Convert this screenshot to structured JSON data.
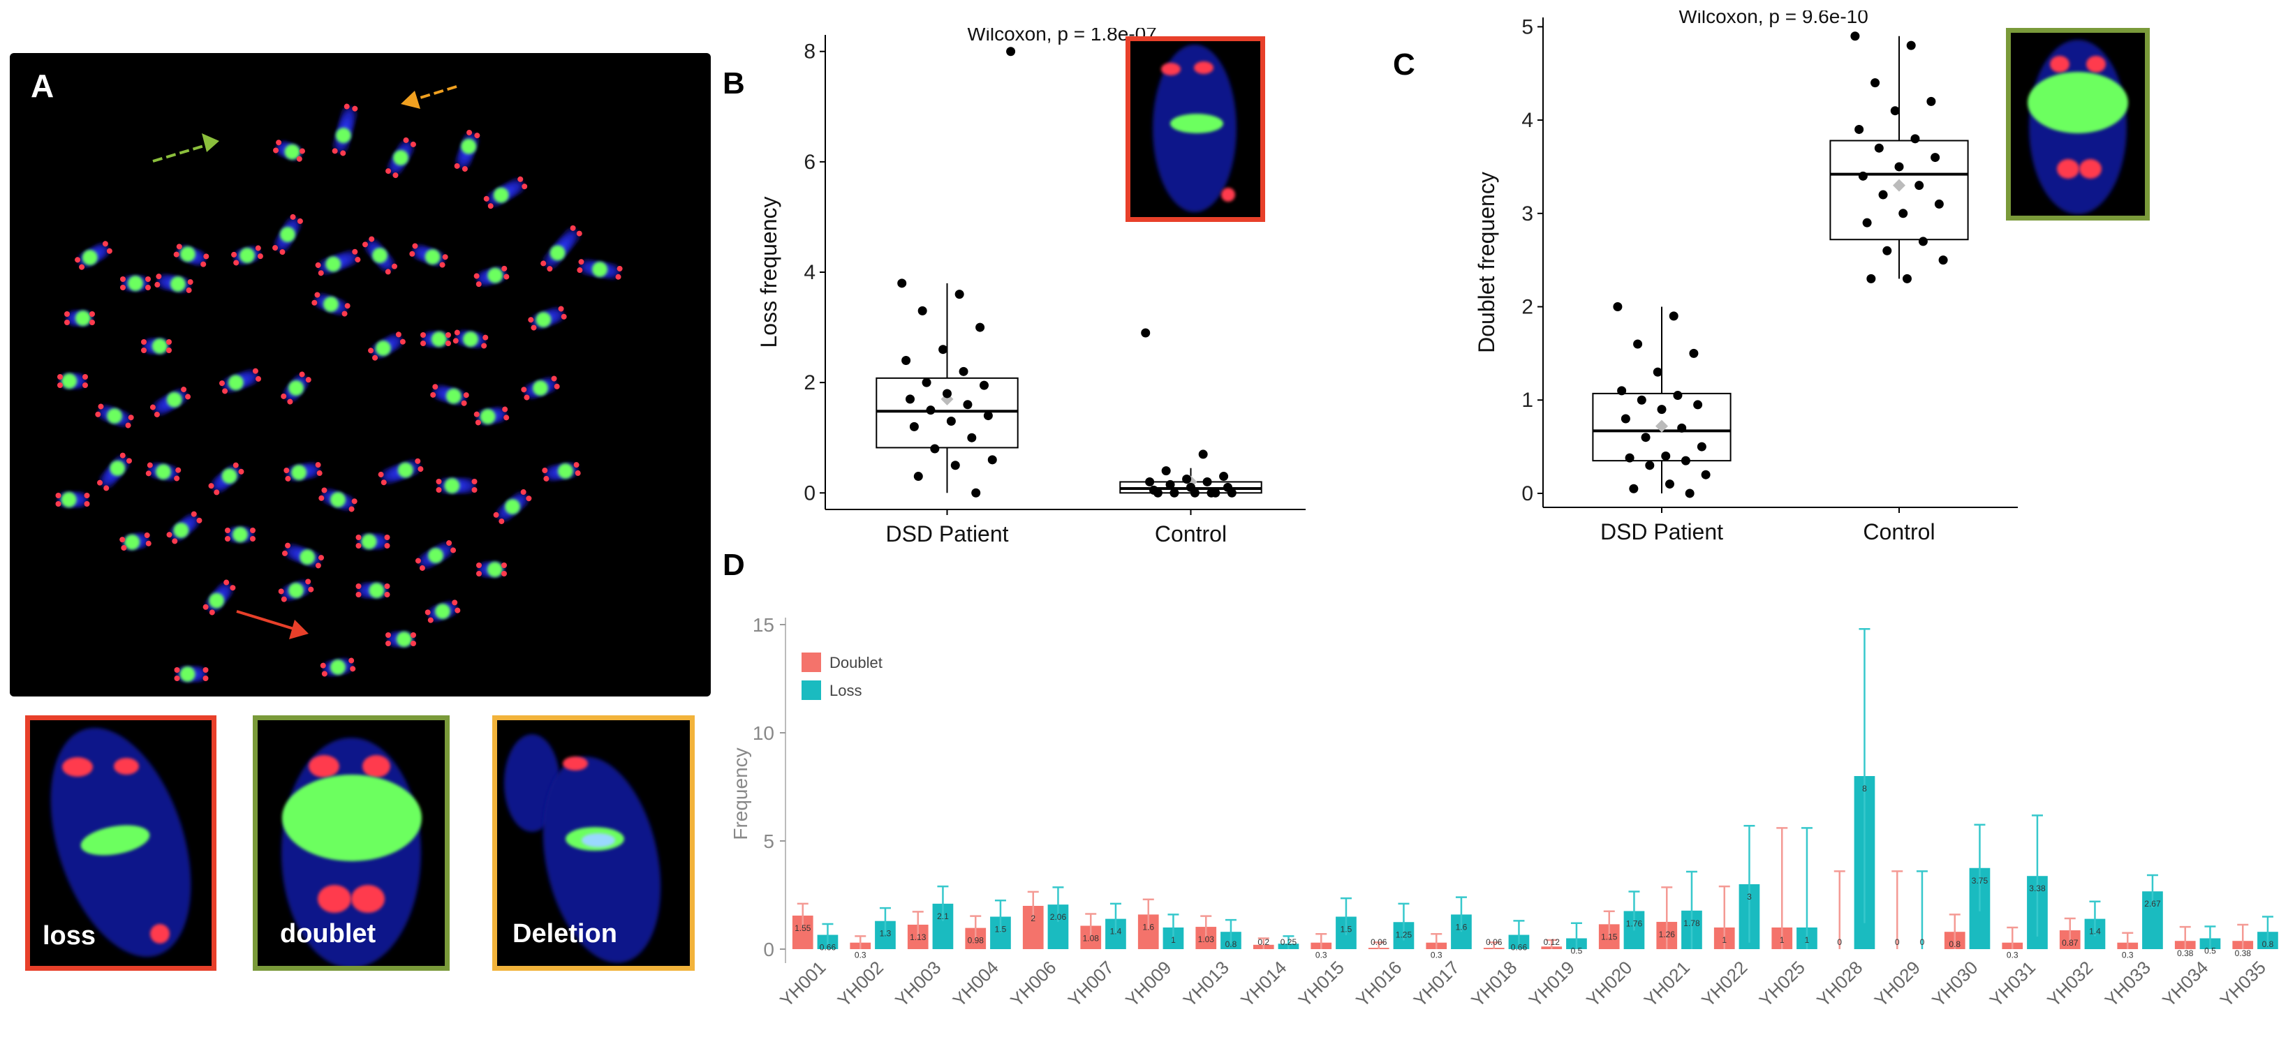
{
  "panel_a": {
    "letter": "A",
    "thumbs": [
      {
        "label": "loss",
        "border": "#e8402a"
      },
      {
        "label": "doublet",
        "border": "#7a9a3a"
      },
      {
        "label": "Deletion",
        "border": "#f2b33b"
      }
    ],
    "arrow_colors": {
      "green": "#8bbf3c",
      "orange": "#f0a020",
      "red": "#e8402a"
    }
  },
  "colors": {
    "doublet": "#f4736b",
    "loss": "#1abbc0",
    "probe_red": "#ff3b4e",
    "probe_green": "#6cff5e",
    "chromosome": "#1a1fb0"
  },
  "chart_data": [
    {
      "id": "B",
      "type": "box",
      "letter": "B",
      "annotation": "Wilcoxon, p = 1.8e-07",
      "ylabel": "Loss frequency",
      "categories": [
        "DSD Patient",
        "Control"
      ],
      "ylim": [
        -0.3,
        8.3
      ],
      "yticks": [
        0,
        2,
        4,
        6,
        8
      ],
      "boxes": [
        {
          "q1": 0.82,
          "median": 1.48,
          "q3": 2.08,
          "whisker_low": 0.0,
          "whisker_high": 3.8,
          "mean": 1.7
        },
        {
          "q1": 0.0,
          "median": 0.08,
          "q3": 0.2,
          "whisker_low": 0.0,
          "whisker_high": 0.45,
          "mean": 0.2
        }
      ],
      "points": [
        [
          3.8,
          3.6,
          3.3,
          3.0,
          2.6,
          2.4,
          2.2,
          2.0,
          1.95,
          1.8,
          1.7,
          1.6,
          1.5,
          1.4,
          1.3,
          1.2,
          1.0,
          0.8,
          0.6,
          0.5,
          0.3,
          0.0
        ],
        [
          2.9,
          0.7,
          0.4,
          0.3,
          0.25,
          0.2,
          0.2,
          0.15,
          0.1,
          0.1,
          0.05,
          0.0,
          0.0,
          0.0,
          0.0,
          0.0,
          0.0
        ],
        [
          8.0
        ]
      ],
      "outliers": [
        {
          "group": 1,
          "value": 8.0
        }
      ],
      "inset_border": "#e8402a"
    },
    {
      "id": "C",
      "type": "box",
      "letter": "C",
      "annotation": "Wilcoxon, p = 9.6e-10",
      "ylabel": "Doublet frequency",
      "categories": [
        "DSD Patient",
        "Control"
      ],
      "ylim": [
        -0.15,
        5.1
      ],
      "yticks": [
        0,
        1,
        2,
        3,
        4,
        5
      ],
      "boxes": [
        {
          "q1": 0.35,
          "median": 0.67,
          "q3": 1.07,
          "whisker_low": 0.0,
          "whisker_high": 2.0,
          "mean": 0.72
        },
        {
          "q1": 2.72,
          "median": 3.42,
          "q3": 3.78,
          "whisker_low": 2.3,
          "whisker_high": 4.9,
          "mean": 3.3
        }
      ],
      "points": [
        [
          2.0,
          1.9,
          1.6,
          1.5,
          1.3,
          1.1,
          1.05,
          1.0,
          0.95,
          0.9,
          0.8,
          0.7,
          0.6,
          0.5,
          0.4,
          0.38,
          0.35,
          0.3,
          0.2,
          0.1,
          0.05,
          0.0
        ],
        [
          4.9,
          4.8,
          4.4,
          4.2,
          4.1,
          3.9,
          3.8,
          3.7,
          3.6,
          3.5,
          3.4,
          3.3,
          3.2,
          3.1,
          3.0,
          2.9,
          2.7,
          2.6,
          2.5,
          2.3,
          2.3
        ]
      ],
      "inset_border": "#7a9a3a"
    },
    {
      "id": "D",
      "type": "bar",
      "letter": "D",
      "ylabel": "Frequency",
      "legend": [
        "Doublet",
        "Loss"
      ],
      "legend_position": "top-left",
      "ylim": [
        0,
        15
      ],
      "yticks": [
        0,
        5,
        10,
        15
      ],
      "categories": [
        "YH001",
        "YH002",
        "YH003",
        "YH004",
        "YH006",
        "YH007",
        "YH009",
        "YH013",
        "YH014",
        "YH015",
        "YH016",
        "YH017",
        "YH018",
        "YH019",
        "YH020",
        "YH021",
        "YH022",
        "YH025",
        "YH028",
        "YH029",
        "YH030",
        "YH031",
        "YH032",
        "YH033",
        "YH034",
        "YH035"
      ],
      "series": [
        {
          "name": "Doublet",
          "values": [
            1.55,
            0.3,
            1.13,
            0.98,
            2.0,
            1.08,
            1.6,
            1.03,
            0.2,
            0.3,
            0.06,
            0.3,
            0.06,
            0.12,
            1.15,
            1.26,
            1.0,
            1.0,
            0.0,
            0.0,
            0.8,
            0.3,
            0.87,
            0.3,
            0.38,
            0.38
          ],
          "errors": [
            0.55,
            0.3,
            0.6,
            0.55,
            0.65,
            0.55,
            0.7,
            0.5,
            0.3,
            0.4,
            0.25,
            0.4,
            0.25,
            0.3,
            0.6,
            1.6,
            1.9,
            4.6,
            3.6,
            3.6,
            0.8,
            0.7,
            0.55,
            0.45,
            0.65,
            0.75
          ]
        },
        {
          "name": "Loss",
          "values": [
            0.66,
            1.3,
            2.1,
            1.5,
            2.06,
            1.4,
            1.0,
            0.8,
            0.25,
            1.5,
            1.25,
            1.6,
            0.66,
            0.5,
            1.76,
            1.78,
            3.0,
            1.0,
            8.0,
            0.0,
            3.75,
            3.38,
            1.4,
            2.67,
            0.5,
            0.8
          ],
          "errors": [
            0.5,
            0.6,
            0.8,
            0.75,
            0.8,
            0.7,
            0.6,
            0.55,
            0.35,
            0.85,
            0.85,
            0.8,
            0.65,
            0.7,
            0.9,
            1.8,
            2.7,
            4.6,
            6.8,
            3.6,
            2.0,
            2.8,
            0.8,
            0.75,
            0.55,
            0.7
          ]
        }
      ],
      "bar_labels": {
        "Doublet": [
          "1.55",
          "0.3",
          "1.13",
          "0.98",
          "2",
          "1.08",
          "1.6",
          "1.03",
          "0.2",
          "0.3",
          "0.06",
          "0.3",
          "0.06",
          "0.12",
          "1.15",
          "1.26",
          "1",
          "1",
          "0",
          "0",
          "0.8",
          "0.3",
          "0.87",
          "0.3",
          "0.38",
          "0.38"
        ],
        "Loss": [
          "0.66",
          "1.3",
          "2.1",
          "1.5",
          "2.06",
          "1.4",
          "1",
          "0.8",
          "0.25",
          "1.5",
          "1.25",
          "1.6",
          "0.66",
          "0.5",
          "1.76",
          "1.78",
          "3",
          "1",
          "8",
          "0",
          "3.75",
          "3.38",
          "1.4",
          "2.67",
          "0.5",
          "0.8"
        ]
      }
    }
  ]
}
